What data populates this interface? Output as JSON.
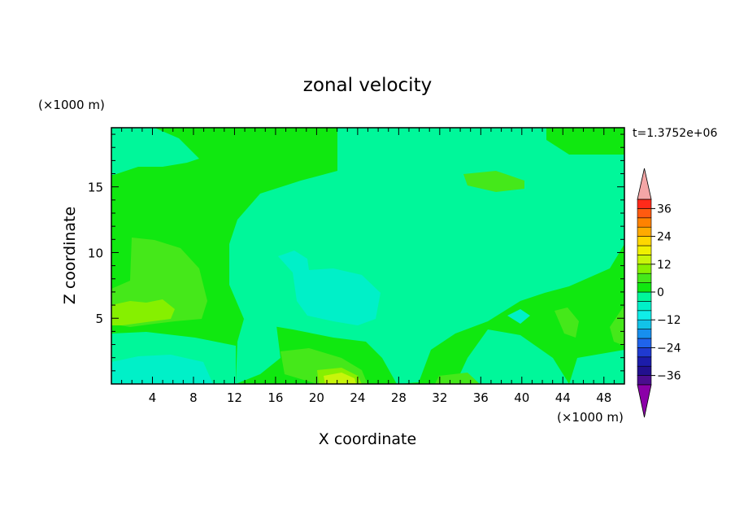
{
  "chart_data": {
    "type": "heatmap",
    "title": "zonal velocity",
    "xlabel": "X coordinate",
    "ylabel": "Z coordinate",
    "x_units": "(×1000 m)",
    "y_units": "(×1000 m)",
    "time_label": "t=1.3752e+06",
    "xlim": [
      0,
      50
    ],
    "ylim": [
      0,
      19.5
    ],
    "x_ticks": [
      4,
      8,
      12,
      16,
      20,
      24,
      28,
      32,
      36,
      40,
      44,
      48
    ],
    "y_ticks": [
      5,
      10,
      15
    ],
    "colorbar": {
      "levels": [
        -40,
        -36,
        -32,
        -28,
        -24,
        -20,
        -16,
        -12,
        -8,
        -4,
        0,
        4,
        8,
        12,
        16,
        20,
        24,
        28,
        32,
        36,
        40
      ],
      "colors": [
        "#4b0d8f",
        "#22108f",
        "#1c1caa",
        "#1f3ad0",
        "#1f63eb",
        "#178fee",
        "#12c3e8",
        "#10ede8",
        "#00f0c8",
        "#00f79a",
        "#10e810",
        "#45e81a",
        "#86f000",
        "#c8f50a",
        "#f0f000",
        "#ffd700",
        "#ffaa00",
        "#ff8200",
        "#ff5a10",
        "#ff2a1a"
      ],
      "tick_labels": [
        -36,
        -24,
        -12,
        0,
        12,
        24,
        36
      ],
      "under_color": "#8b00a8",
      "over_color": "#f4a6a6"
    },
    "contours": [
      {
        "level": 0,
        "color": "#10e810",
        "region": "background"
      },
      {
        "level": -4,
        "color": "#00f79a",
        "region": "central and upper right"
      },
      {
        "level": -8,
        "color": "#00f0c8",
        "region": "x 18-26, z 4-10 and bottom left"
      },
      {
        "level": 4,
        "color": "#45e81a",
        "region": "left x 0-10, z 4-11 and lower middle"
      },
      {
        "level": 8,
        "color": "#86f000",
        "region": "small patches"
      },
      {
        "level": 12,
        "color": "#c8f50a",
        "region": "bottom x 20-24"
      }
    ]
  }
}
